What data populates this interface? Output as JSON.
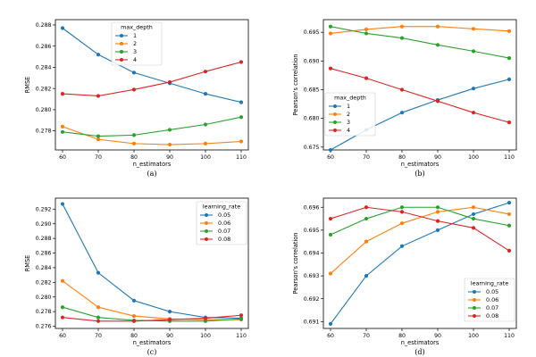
{
  "chart_data": [
    {
      "type": "line",
      "panel_caption": "(a)",
      "xlabel": "n_estimators",
      "ylabel": "RMSE",
      "x": [
        60,
        70,
        80,
        90,
        100,
        110
      ],
      "xticks": [
        "60",
        "70",
        "80",
        "90",
        "100",
        "110"
      ],
      "ylim": [
        0.2762,
        0.2885
      ],
      "yticks": [
        0.278,
        0.28,
        0.282,
        0.284,
        0.286,
        0.288
      ],
      "ytick_labels": [
        "0.278",
        "0.280",
        "0.282",
        "0.284",
        "0.286",
        "0.288"
      ],
      "legend": {
        "title": "max_depth",
        "placement": "top-center"
      },
      "series": [
        {
          "name": "1",
          "color": "#1f77b4",
          "values": [
            0.2877,
            0.2852,
            0.2835,
            0.2825,
            0.2815,
            0.2807
          ]
        },
        {
          "name": "2",
          "color": "#ff7f0e",
          "values": [
            0.2784,
            0.2772,
            0.2768,
            0.2767,
            0.2768,
            0.277
          ]
        },
        {
          "name": "3",
          "color": "#2ca02c",
          "values": [
            0.2779,
            0.2775,
            0.2776,
            0.2781,
            0.2786,
            0.2793
          ]
        },
        {
          "name": "4",
          "color": "#d62728",
          "values": [
            0.2815,
            0.2813,
            0.2819,
            0.2826,
            0.2836,
            0.2845
          ]
        }
      ]
    },
    {
      "type": "line",
      "panel_caption": "(b)",
      "xlabel": "n_estimators",
      "ylabel": "Pearson's correlation",
      "x": [
        60,
        70,
        80,
        90,
        100,
        110
      ],
      "xticks": [
        "60",
        "70",
        "80",
        "90",
        "100",
        "110"
      ],
      "ylim": [
        0.6745,
        0.6972
      ],
      "yticks": [
        0.675,
        0.68,
        0.685,
        0.69,
        0.695
      ],
      "ytick_labels": [
        "0.675",
        "0.680",
        "0.685",
        "0.690",
        "0.695"
      ],
      "legend": {
        "title": "max_depth",
        "placement": "lower-left"
      },
      "series": [
        {
          "name": "1",
          "color": "#1f77b4",
          "values": [
            0.6745,
            0.678,
            0.681,
            0.6832,
            0.6852,
            0.6868
          ]
        },
        {
          "name": "2",
          "color": "#ff7f0e",
          "values": [
            0.6948,
            0.6955,
            0.696,
            0.696,
            0.6956,
            0.6952
          ]
        },
        {
          "name": "3",
          "color": "#2ca02c",
          "values": [
            0.696,
            0.6948,
            0.694,
            0.6928,
            0.6917,
            0.6905
          ]
        },
        {
          "name": "4",
          "color": "#d62728",
          "values": [
            0.6887,
            0.687,
            0.685,
            0.683,
            0.681,
            0.6793
          ]
        }
      ]
    },
    {
      "type": "line",
      "panel_caption": "(c)",
      "xlabel": "n_estimators",
      "ylabel": "RMSE",
      "x": [
        60,
        70,
        80,
        90,
        100,
        110
      ],
      "xticks": [
        "60",
        "70",
        "80",
        "90",
        "100",
        "110"
      ],
      "ylim": [
        0.2757,
        0.2935
      ],
      "yticks": [
        0.276,
        0.278,
        0.28,
        0.282,
        0.284,
        0.286,
        0.288,
        0.29,
        0.292
      ],
      "ytick_labels": [
        "0.276",
        "0.278",
        "0.280",
        "0.282",
        "0.284",
        "0.286",
        "0.288",
        "0.290",
        "0.292"
      ],
      "legend": {
        "title": "learning_rate",
        "placement": "top-right"
      },
      "series": [
        {
          "name": "0.05",
          "color": "#1f77b4",
          "values": [
            0.2927,
            0.2833,
            0.2795,
            0.278,
            0.2772,
            0.2771
          ]
        },
        {
          "name": "0.06",
          "color": "#ff7f0e",
          "values": [
            0.2822,
            0.2786,
            0.2774,
            0.277,
            0.2769,
            0.2769
          ]
        },
        {
          "name": "0.07",
          "color": "#2ca02c",
          "values": [
            0.2786,
            0.2772,
            0.2768,
            0.2767,
            0.2767,
            0.277
          ]
        },
        {
          "name": "0.08",
          "color": "#d62728",
          "values": [
            0.2772,
            0.2767,
            0.2767,
            0.2769,
            0.2771,
            0.2775
          ]
        }
      ]
    },
    {
      "type": "line",
      "panel_caption": "(d)",
      "xlabel": "n_estimators",
      "ylabel": "Pearson's correlation",
      "x": [
        60,
        70,
        80,
        90,
        100,
        110
      ],
      "xticks": [
        "60",
        "70",
        "80",
        "90",
        "100",
        "110"
      ],
      "ylim": [
        0.6907,
        0.6964
      ],
      "yticks": [
        0.691,
        0.692,
        0.693,
        0.694,
        0.695,
        0.696
      ],
      "ytick_labels": [
        "0.691",
        "0.692",
        "0.693",
        "0.694",
        "0.695",
        "0.696"
      ],
      "legend": {
        "title": "learning_rate",
        "placement": "lower-right"
      },
      "series": [
        {
          "name": "0.05",
          "color": "#1f77b4",
          "values": [
            0.6909,
            0.693,
            0.6943,
            0.695,
            0.6957,
            0.6962
          ]
        },
        {
          "name": "0.06",
          "color": "#ff7f0e",
          "values": [
            0.6931,
            0.6945,
            0.6953,
            0.6958,
            0.696,
            0.6957
          ]
        },
        {
          "name": "0.07",
          "color": "#2ca02c",
          "values": [
            0.6948,
            0.6955,
            0.696,
            0.696,
            0.6955,
            0.6952
          ]
        },
        {
          "name": "0.08",
          "color": "#d62728",
          "values": [
            0.6955,
            0.696,
            0.6958,
            0.6954,
            0.6951,
            0.6941
          ]
        }
      ]
    }
  ]
}
